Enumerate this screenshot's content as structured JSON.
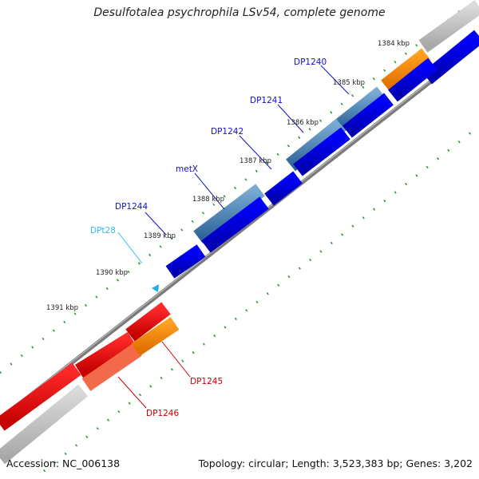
{
  "title": "Desulfotalea psychrophila LSv54, complete genome",
  "accession": "Accession: NC_006138",
  "summary": "Topology: circular; Length: 3,523,383 bp; Genes: 3,202",
  "colors": {
    "forward_cds": "#4a86b8",
    "reverse_cds": "#0a0adf",
    "rrna_orange": "#ff8c00",
    "trna": "#1eb0e6",
    "red_gene": "#ee1111",
    "gray_gene": "#c4c4c4",
    "backbone": "#7a7a7a",
    "tick_green": "#2e8b2e",
    "label_blue": "#1111cc",
    "label_red": "#cc0000",
    "label_cyan": "#33bbee"
  },
  "coordinate_labels": [
    "1384 kbp",
    "1385 kbp",
    "1386 kbp",
    "1387 kbp",
    "1388 kbp",
    "1389 kbp",
    "1390 kbp",
    "1391 kbp"
  ],
  "gene_labels": [
    {
      "text": "DP1240",
      "color": "label_blue"
    },
    {
      "text": "DP1241",
      "color": "label_blue"
    },
    {
      "text": "DP1242",
      "color": "label_blue"
    },
    {
      "text": "metX",
      "color": "label_blue"
    },
    {
      "text": "DP1244",
      "color": "label_blue"
    },
    {
      "text": "DPt28",
      "color": "label_cyan"
    },
    {
      "text": "DP1245",
      "color": "label_red"
    },
    {
      "text": "DP1246",
      "color": "label_red"
    }
  ]
}
